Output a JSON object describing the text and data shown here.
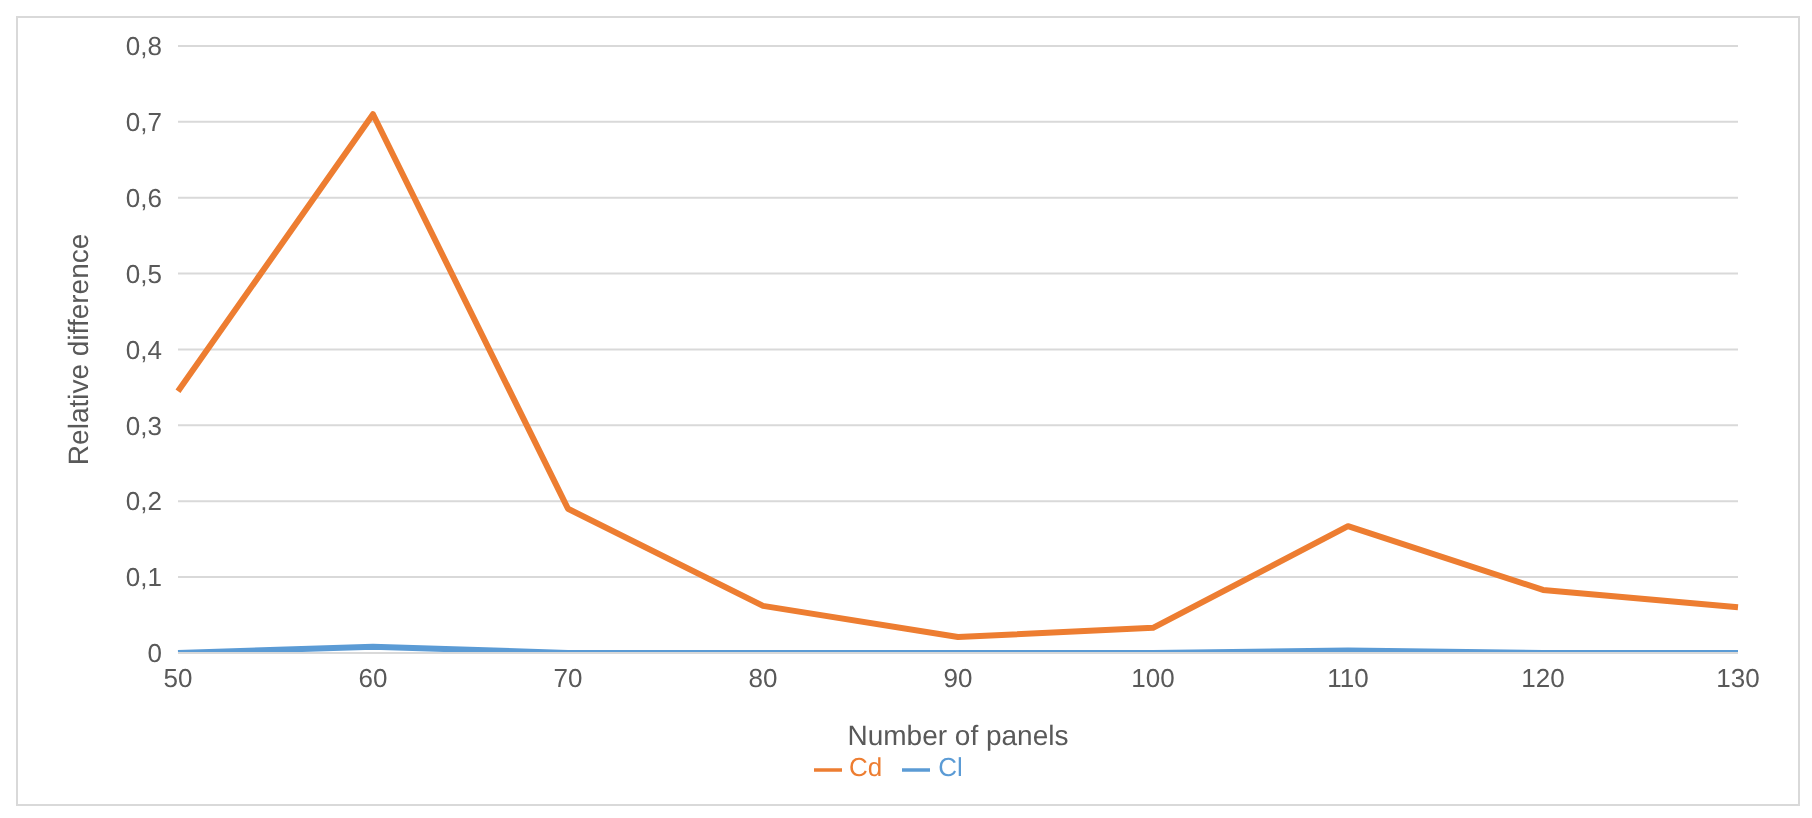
{
  "chart_data": {
    "type": "line",
    "xlabel": "Number of panels",
    "ylabel": "Relative difference",
    "categories": [
      "50",
      "60",
      "70",
      "80",
      "90",
      "100",
      "110",
      "120",
      "130"
    ],
    "series": [
      {
        "name": "Cl",
        "color": "#5b9bd5",
        "values": [
          0,
          0.008,
          0,
          0,
          0,
          0,
          0.003,
          0,
          0
        ]
      },
      {
        "name": "Cd",
        "color": "#ed7d31",
        "values": [
          0.345,
          0.71,
          0.19,
          0.062,
          0.021,
          0.033,
          0.167,
          0.083,
          0.06
        ]
      }
    ],
    "ylim": [
      0,
      0.8
    ],
    "yticks": [
      {
        "value": 0,
        "label": "0"
      },
      {
        "value": 0.1,
        "label": "0,1"
      },
      {
        "value": 0.2,
        "label": "0,2"
      },
      {
        "value": 0.3,
        "label": "0,3"
      },
      {
        "value": 0.4,
        "label": "0,4"
      },
      {
        "value": 0.5,
        "label": "0,5"
      },
      {
        "value": 0.6,
        "label": "0,6"
      },
      {
        "value": 0.7,
        "label": "0,7"
      },
      {
        "value": 0.8,
        "label": "0,8"
      }
    ],
    "grid": "y",
    "legend": "bottom",
    "marker": "none",
    "line_style": "solid"
  }
}
